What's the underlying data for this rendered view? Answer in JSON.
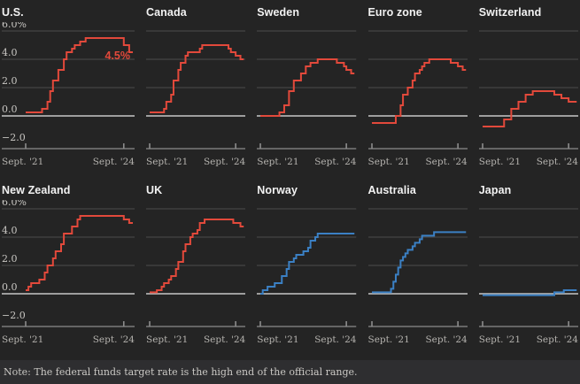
{
  "note": "Note: The federal funds target rate is the high end of the official range.",
  "colors": {
    "cut_line": "#e2493b",
    "hold_line": "#3b80c4",
    "background": "#242424",
    "grid": "#4d4d4d",
    "zero_line": "#b0b0b0",
    "axis": "#8c8c8c",
    "note_bg": "#2e2e30",
    "annotation": "#e2493b"
  },
  "axis": {
    "x_tick_labels": [
      "Sept. '21",
      "Sept. '24"
    ],
    "y_tick_labels": [
      "6.0%",
      "4.0",
      "2.0",
      "0.0",
      "−2.0"
    ],
    "y_tick_values": [
      6,
      4,
      2,
      0,
      -2
    ],
    "grid_values": [
      6,
      4,
      2
    ],
    "x_domain_months": [
      0,
      39
    ],
    "x_tick_months": [
      0,
      36
    ],
    "ylim": [
      -2.6,
      6.6
    ]
  },
  "chart_data": [
    {
      "type": "line",
      "title": "U.S.",
      "color": "#e2493b",
      "show_y_labels": true,
      "annotation": {
        "text": "4.5%",
        "value": 4.5
      },
      "steps": [
        [
          0,
          0.25
        ],
        [
          6,
          0.5
        ],
        [
          8,
          1.0
        ],
        [
          9,
          1.75
        ],
        [
          10,
          2.5
        ],
        [
          12,
          3.25
        ],
        [
          14,
          4.0
        ],
        [
          15,
          4.5
        ],
        [
          17,
          4.75
        ],
        [
          18,
          5.0
        ],
        [
          20,
          5.25
        ],
        [
          22,
          5.5
        ],
        [
          36,
          5.0
        ],
        [
          38,
          4.5
        ]
      ]
    },
    {
      "type": "line",
      "title": "Canada",
      "color": "#e2493b",
      "show_y_labels": false,
      "steps": [
        [
          0,
          0.25
        ],
        [
          6,
          0.5
        ],
        [
          7,
          1.0
        ],
        [
          9,
          1.5
        ],
        [
          10,
          2.5
        ],
        [
          12,
          3.25
        ],
        [
          13,
          3.75
        ],
        [
          15,
          4.25
        ],
        [
          16,
          4.5
        ],
        [
          21,
          4.75
        ],
        [
          22,
          5.0
        ],
        [
          33,
          4.75
        ],
        [
          34,
          4.5
        ],
        [
          36,
          4.25
        ],
        [
          38,
          4.0
        ]
      ]
    },
    {
      "type": "line",
      "title": "Sweden",
      "color": "#e2493b",
      "show_y_labels": false,
      "steps": [
        [
          0,
          0.0
        ],
        [
          8,
          0.25
        ],
        [
          10,
          0.75
        ],
        [
          12,
          1.75
        ],
        [
          14,
          2.5
        ],
        [
          17,
          3.0
        ],
        [
          19,
          3.5
        ],
        [
          21,
          3.75
        ],
        [
          24,
          4.0
        ],
        [
          32,
          3.75
        ],
        [
          35,
          3.5
        ],
        [
          36,
          3.25
        ],
        [
          38,
          3.0
        ]
      ]
    },
    {
      "type": "line",
      "title": "Euro zone",
      "color": "#e2493b",
      "show_y_labels": false,
      "steps": [
        [
          0,
          -0.5
        ],
        [
          10,
          0.0
        ],
        [
          12,
          0.75
        ],
        [
          13,
          1.5
        ],
        [
          15,
          2.0
        ],
        [
          17,
          2.5
        ],
        [
          18,
          3.0
        ],
        [
          20,
          3.25
        ],
        [
          21,
          3.5
        ],
        [
          22,
          3.75
        ],
        [
          24,
          4.0
        ],
        [
          33,
          3.75
        ],
        [
          36,
          3.5
        ],
        [
          38,
          3.25
        ]
      ]
    },
    {
      "type": "line",
      "title": "Switzerland",
      "color": "#e2493b",
      "show_y_labels": false,
      "steps": [
        [
          0,
          -0.75
        ],
        [
          9,
          -0.25
        ],
        [
          12,
          0.5
        ],
        [
          15,
          1.0
        ],
        [
          18,
          1.5
        ],
        [
          21,
          1.75
        ],
        [
          30,
          1.5
        ],
        [
          33,
          1.25
        ],
        [
          36,
          1.0
        ]
      ]
    },
    {
      "type": "line",
      "title": "New Zealand",
      "color": "#e2493b",
      "show_y_labels": true,
      "steps": [
        [
          0,
          0.25
        ],
        [
          1,
          0.5
        ],
        [
          2,
          0.75
        ],
        [
          5,
          1.0
        ],
        [
          7,
          1.5
        ],
        [
          8,
          2.0
        ],
        [
          10,
          2.5
        ],
        [
          11,
          3.0
        ],
        [
          13,
          3.5
        ],
        [
          14,
          4.25
        ],
        [
          17,
          4.75
        ],
        [
          19,
          5.25
        ],
        [
          20,
          5.5
        ],
        [
          36,
          5.25
        ],
        [
          38,
          5.0
        ]
      ]
    },
    {
      "type": "line",
      "title": "UK",
      "color": "#e2493b",
      "show_y_labels": false,
      "steps": [
        [
          0,
          0.1
        ],
        [
          3,
          0.25
        ],
        [
          5,
          0.5
        ],
        [
          6,
          0.75
        ],
        [
          8,
          1.0
        ],
        [
          9,
          1.25
        ],
        [
          11,
          1.75
        ],
        [
          12,
          2.25
        ],
        [
          14,
          3.0
        ],
        [
          15,
          3.5
        ],
        [
          17,
          4.0
        ],
        [
          18,
          4.25
        ],
        [
          20,
          4.5
        ],
        [
          21,
          5.0
        ],
        [
          23,
          5.25
        ],
        [
          35,
          5.0
        ],
        [
          38,
          4.75
        ]
      ]
    },
    {
      "type": "line",
      "title": "Norway",
      "color": "#3b80c4",
      "show_y_labels": false,
      "steps": [
        [
          0,
          0.0
        ],
        [
          1,
          0.25
        ],
        [
          3,
          0.5
        ],
        [
          6,
          0.75
        ],
        [
          9,
          1.25
        ],
        [
          11,
          1.75
        ],
        [
          12,
          2.25
        ],
        [
          14,
          2.5
        ],
        [
          15,
          2.75
        ],
        [
          18,
          3.0
        ],
        [
          20,
          3.25
        ],
        [
          21,
          3.75
        ],
        [
          23,
          4.0
        ],
        [
          24,
          4.25
        ]
      ]
    },
    {
      "type": "line",
      "title": "Australia",
      "color": "#3b80c4",
      "show_y_labels": false,
      "steps": [
        [
          0,
          0.1
        ],
        [
          8,
          0.35
        ],
        [
          9,
          0.85
        ],
        [
          10,
          1.35
        ],
        [
          11,
          1.85
        ],
        [
          12,
          2.35
        ],
        [
          13,
          2.6
        ],
        [
          14,
          2.85
        ],
        [
          15,
          3.1
        ],
        [
          17,
          3.35
        ],
        [
          18,
          3.6
        ],
        [
          20,
          3.85
        ],
        [
          21,
          4.1
        ],
        [
          26,
          4.35
        ]
      ]
    },
    {
      "type": "line",
      "title": "Japan",
      "color": "#3b80c4",
      "show_y_labels": false,
      "steps": [
        [
          0,
          -0.1
        ],
        [
          30,
          0.1
        ],
        [
          34,
          0.25
        ]
      ]
    }
  ]
}
